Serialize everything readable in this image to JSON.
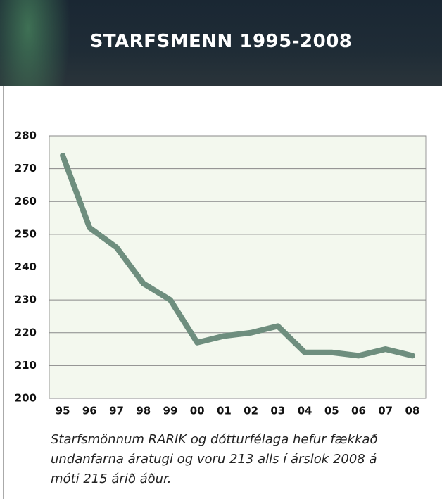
{
  "chart_data": {
    "type": "line",
    "title": "STARFSMENN 1995-2008",
    "categories": [
      "95",
      "96",
      "97",
      "98",
      "99",
      "00",
      "01",
      "02",
      "03",
      "04",
      "05",
      "06",
      "07",
      "08"
    ],
    "values": [
      274,
      252,
      246,
      235,
      230,
      217,
      219,
      220,
      222,
      214,
      214,
      213,
      215,
      213
    ],
    "color": "#6e8e7e",
    "ylim": [
      200,
      280
    ],
    "yticks": [
      200,
      210,
      220,
      230,
      240,
      250,
      260,
      270,
      280
    ],
    "grid": true,
    "caption": [
      "Starfsmönnum  RARIK  og dótturfélaga hefur fækkað",
      "undanfarna áratugi og voru 213 alls  í árslok 2008 á",
      "móti 215 árið áður."
    ]
  }
}
